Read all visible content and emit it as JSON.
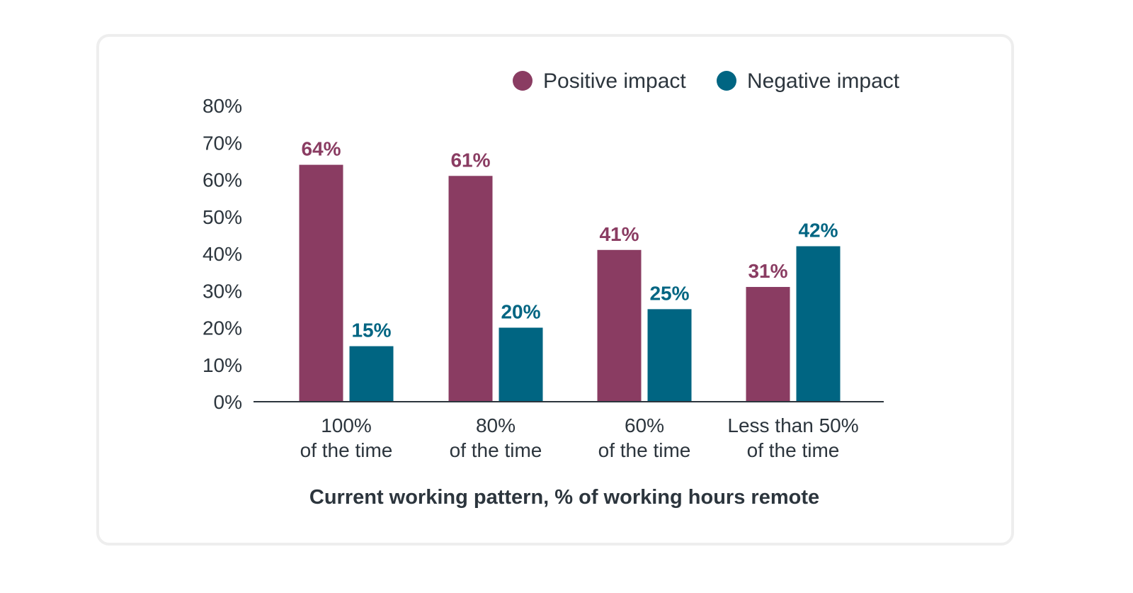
{
  "chart_data": {
    "type": "bar",
    "categories": [
      [
        "100%",
        "of the time"
      ],
      [
        "80%",
        "of the time"
      ],
      [
        "60%",
        "of the time"
      ],
      [
        "Less than 50%",
        "of the time"
      ]
    ],
    "series": [
      {
        "name": "Positive impact",
        "color": "#8a3c62",
        "values": [
          64,
          61,
          41,
          31
        ],
        "labels": [
          "64%",
          "61%",
          "41%",
          "31%"
        ]
      },
      {
        "name": "Negative impact",
        "color": "#006582",
        "values": [
          15,
          20,
          25,
          42
        ],
        "labels": [
          "15%",
          "20%",
          "25%",
          "42%"
        ]
      }
    ],
    "xlabel": "Current working pattern, % of working hours remote",
    "ylabel": "",
    "ylim": [
      0,
      80
    ],
    "yticks": [
      "0%",
      "10%",
      "20%",
      "30%",
      "40%",
      "50%",
      "60%",
      "70%",
      "80%"
    ],
    "grid": false,
    "legend_position": "top-right"
  }
}
